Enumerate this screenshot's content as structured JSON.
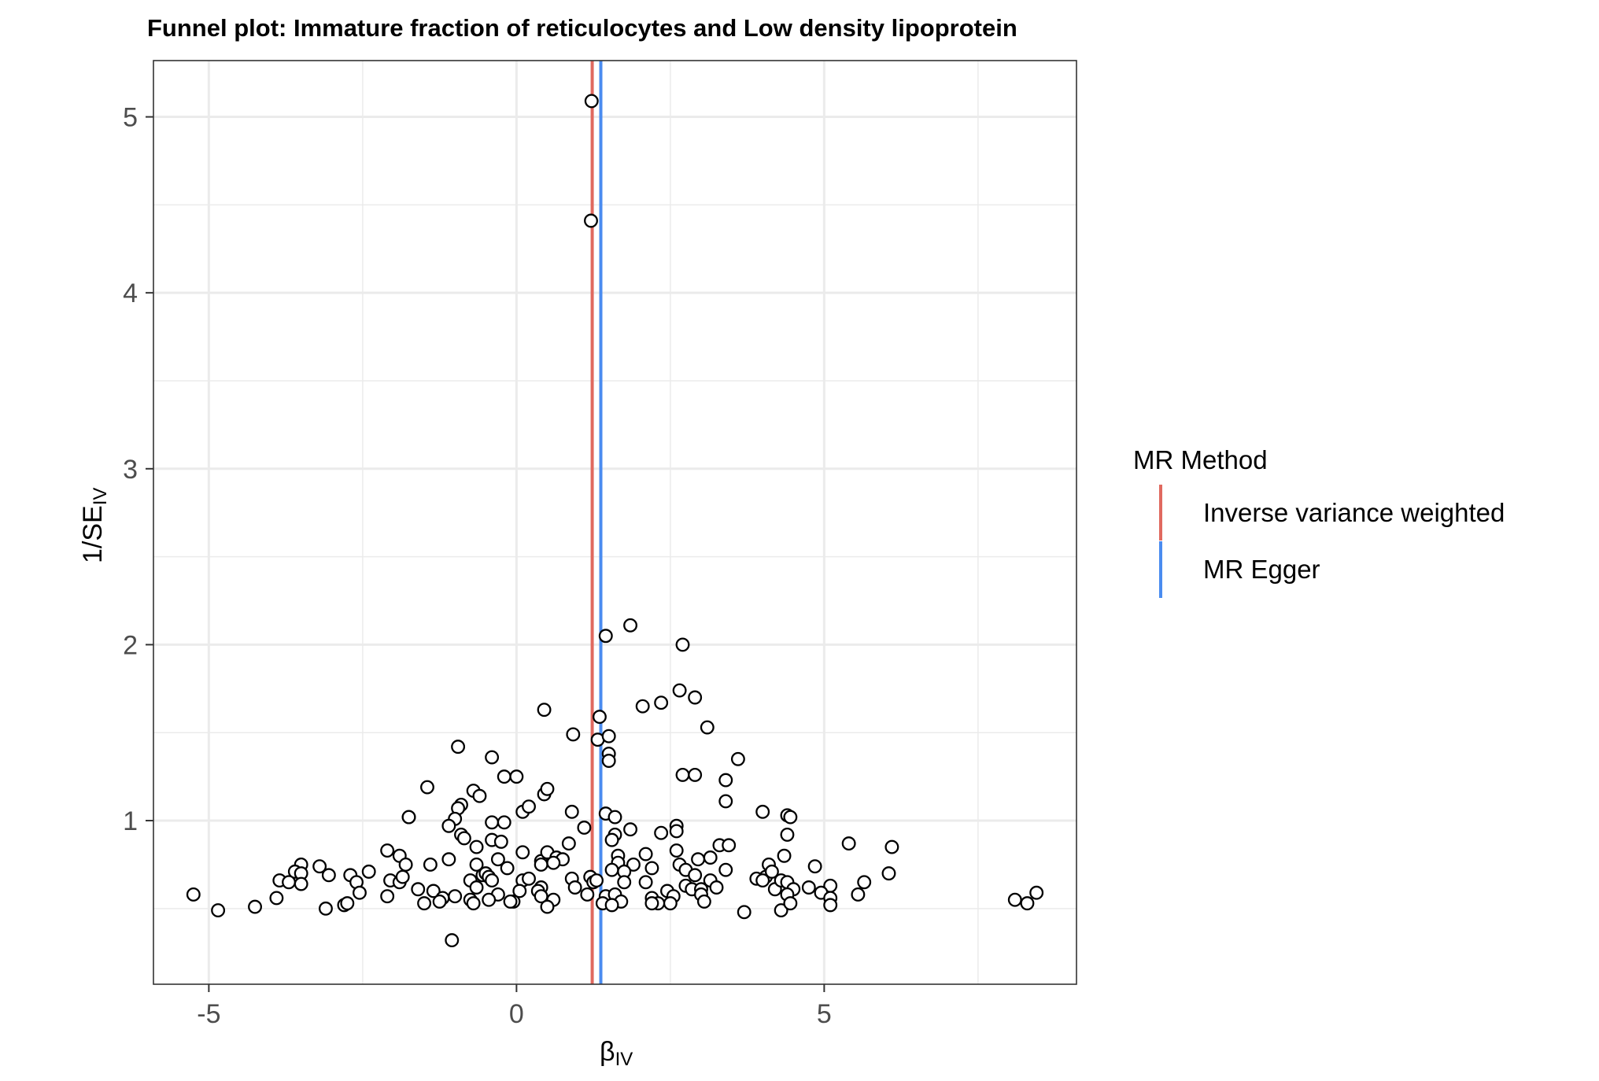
{
  "chart_data": {
    "type": "scatter",
    "title": "Funnel plot: Immature fraction of reticulocytes and Low density lipoprotein",
    "xlabel": {
      "main": "β",
      "sub": "IV"
    },
    "ylabel": {
      "main": "1/SE",
      "sub": "IV"
    },
    "xlim": [
      -5.9,
      9.1
    ],
    "ylim": [
      0.07,
      5.32
    ],
    "x_ticks": [
      -5,
      0,
      5
    ],
    "x_tick_labels": [
      "-5",
      "0",
      "5"
    ],
    "y_ticks": [
      1,
      2,
      3,
      4,
      5
    ],
    "y_tick_labels": [
      "1",
      "2",
      "3",
      "4",
      "5"
    ],
    "grid": true,
    "legend": {
      "title": "MR Method",
      "position": "right",
      "entries": [
        {
          "name": "Inverse variance weighted",
          "color": "#e0695f"
        },
        {
          "name": "MR Egger",
          "color": "#4a8cf0"
        }
      ]
    },
    "vlines": [
      {
        "name": "Inverse variance weighted",
        "x": 1.23,
        "color": "#e0695f"
      },
      {
        "name": "MR Egger",
        "x": 1.37,
        "color": "#4a8cf0"
      }
    ],
    "points": [
      [
        1.22,
        5.09
      ],
      [
        1.21,
        4.41
      ],
      [
        1.45,
        2.05
      ],
      [
        1.85,
        2.11
      ],
      [
        2.7,
        2.0
      ],
      [
        0.45,
        1.63
      ],
      [
        1.35,
        1.59
      ],
      [
        2.05,
        1.65
      ],
      [
        2.35,
        1.67
      ],
      [
        2.65,
        1.74
      ],
      [
        2.9,
        1.7
      ],
      [
        0.92,
        1.49
      ],
      [
        1.32,
        1.46
      ],
      [
        1.5,
        1.48
      ],
      [
        3.1,
        1.53
      ],
      [
        -0.95,
        1.42
      ],
      [
        -0.4,
        1.36
      ],
      [
        1.5,
        1.38
      ],
      [
        1.5,
        1.34
      ],
      [
        3.6,
        1.35
      ],
      [
        -0.2,
        1.25
      ],
      [
        0.0,
        1.25
      ],
      [
        2.7,
        1.26
      ],
      [
        2.9,
        1.26
      ],
      [
        3.4,
        1.23
      ],
      [
        -1.45,
        1.19
      ],
      [
        -0.7,
        1.17
      ],
      [
        -0.6,
        1.14
      ],
      [
        0.45,
        1.15
      ],
      [
        0.5,
        1.18
      ],
      [
        3.4,
        1.11
      ],
      [
        -0.9,
        1.09
      ],
      [
        -0.95,
        1.07
      ],
      [
        0.1,
        1.05
      ],
      [
        0.2,
        1.08
      ],
      [
        -1.75,
        1.02
      ],
      [
        -1.75,
        1.02
      ],
      [
        -1.0,
        1.01
      ],
      [
        -1.1,
        0.97
      ],
      [
        -0.4,
        0.99
      ],
      [
        -0.2,
        0.99
      ],
      [
        0.9,
        1.05
      ],
      [
        1.1,
        0.96
      ],
      [
        1.45,
        1.04
      ],
      [
        1.6,
        1.02
      ],
      [
        2.6,
        0.97
      ],
      [
        2.6,
        0.94
      ],
      [
        4.0,
        1.05
      ],
      [
        4.4,
        1.03
      ],
      [
        4.45,
        1.02
      ],
      [
        -0.9,
        0.92
      ],
      [
        -0.85,
        0.9
      ],
      [
        -0.4,
        0.89
      ],
      [
        -0.25,
        0.88
      ],
      [
        -0.65,
        0.85
      ],
      [
        1.6,
        0.92
      ],
      [
        1.55,
        0.89
      ],
      [
        1.85,
        0.95
      ],
      [
        2.35,
        0.93
      ],
      [
        4.4,
        0.92
      ],
      [
        -2.1,
        0.83
      ],
      [
        -1.9,
        0.8
      ],
      [
        -0.3,
        0.78
      ],
      [
        0.1,
        0.82
      ],
      [
        0.4,
        0.77
      ],
      [
        0.5,
        0.82
      ],
      [
        0.65,
        0.79
      ],
      [
        0.75,
        0.78
      ],
      [
        0.85,
        0.87
      ],
      [
        1.65,
        0.8
      ],
      [
        2.1,
        0.81
      ],
      [
        2.6,
        0.83
      ],
      [
        3.3,
        0.86
      ],
      [
        3.45,
        0.86
      ],
      [
        3.15,
        0.79
      ],
      [
        4.35,
        0.8
      ],
      [
        5.4,
        0.87
      ],
      [
        6.1,
        0.85
      ],
      [
        -3.5,
        0.75
      ],
      [
        -3.6,
        0.71
      ],
      [
        -3.5,
        0.7
      ],
      [
        -3.2,
        0.74
      ],
      [
        -3.05,
        0.69
      ],
      [
        -2.7,
        0.69
      ],
      [
        -2.4,
        0.71
      ],
      [
        -1.8,
        0.75
      ],
      [
        -1.4,
        0.75
      ],
      [
        -1.1,
        0.78
      ],
      [
        -0.65,
        0.75
      ],
      [
        -0.55,
        0.69
      ],
      [
        -0.5,
        0.7
      ],
      [
        -0.15,
        0.73
      ],
      [
        0.4,
        0.75
      ],
      [
        0.6,
        0.76
      ],
      [
        1.65,
        0.76
      ],
      [
        1.9,
        0.75
      ],
      [
        2.2,
        0.73
      ],
      [
        2.65,
        0.75
      ],
      [
        2.75,
        0.72
      ],
      [
        2.95,
        0.78
      ],
      [
        3.4,
        0.72
      ],
      [
        3.9,
        0.67
      ],
      [
        4.05,
        0.68
      ],
      [
        4.1,
        0.75
      ],
      [
        4.15,
        0.71
      ],
      [
        4.85,
        0.74
      ],
      [
        -3.85,
        0.66
      ],
      [
        -3.7,
        0.65
      ],
      [
        -3.5,
        0.64
      ],
      [
        -2.6,
        0.65
      ],
      [
        -2.05,
        0.66
      ],
      [
        -1.9,
        0.65
      ],
      [
        -1.85,
        0.68
      ],
      [
        -0.75,
        0.66
      ],
      [
        -0.65,
        0.62
      ],
      [
        -0.45,
        0.68
      ],
      [
        -0.4,
        0.66
      ],
      [
        0.1,
        0.66
      ],
      [
        0.2,
        0.67
      ],
      [
        0.4,
        0.62
      ],
      [
        0.9,
        0.67
      ],
      [
        0.95,
        0.62
      ],
      [
        1.2,
        0.68
      ],
      [
        1.25,
        0.65
      ],
      [
        1.3,
        0.66
      ],
      [
        1.55,
        0.72
      ],
      [
        1.75,
        0.71
      ],
      [
        1.75,
        0.65
      ],
      [
        2.1,
        0.65
      ],
      [
        2.75,
        0.63
      ],
      [
        2.85,
        0.61
      ],
      [
        2.9,
        0.69
      ],
      [
        3.0,
        0.61
      ],
      [
        3.15,
        0.66
      ],
      [
        3.25,
        0.62
      ],
      [
        4.0,
        0.66
      ],
      [
        4.2,
        0.61
      ],
      [
        4.3,
        0.66
      ],
      [
        4.4,
        0.65
      ],
      [
        4.5,
        0.61
      ],
      [
        4.75,
        0.62
      ],
      [
        5.1,
        0.63
      ],
      [
        5.65,
        0.65
      ],
      [
        6.05,
        0.7
      ],
      [
        -5.25,
        0.58
      ],
      [
        -3.9,
        0.56
      ],
      [
        -2.55,
        0.59
      ],
      [
        -2.1,
        0.57
      ],
      [
        -1.6,
        0.61
      ],
      [
        -1.35,
        0.6
      ],
      [
        -1.2,
        0.56
      ],
      [
        -1.0,
        0.57
      ],
      [
        -0.75,
        0.55
      ],
      [
        -0.3,
        0.58
      ],
      [
        -0.05,
        0.54
      ],
      [
        0.05,
        0.6
      ],
      [
        0.35,
        0.6
      ],
      [
        0.4,
        0.57
      ],
      [
        0.6,
        0.55
      ],
      [
        1.15,
        0.58
      ],
      [
        1.45,
        0.57
      ],
      [
        1.6,
        0.58
      ],
      [
        1.7,
        0.54
      ],
      [
        2.2,
        0.56
      ],
      [
        2.3,
        0.53
      ],
      [
        2.45,
        0.6
      ],
      [
        2.55,
        0.57
      ],
      [
        3.0,
        0.58
      ],
      [
        3.05,
        0.54
      ],
      [
        4.4,
        0.58
      ],
      [
        4.95,
        0.59
      ],
      [
        5.1,
        0.56
      ],
      [
        5.55,
        0.58
      ],
      [
        8.1,
        0.55
      ],
      [
        8.45,
        0.59
      ],
      [
        -4.85,
        0.49
      ],
      [
        -4.25,
        0.51
      ],
      [
        -3.1,
        0.5
      ],
      [
        -2.8,
        0.52
      ],
      [
        -2.75,
        0.53
      ],
      [
        -1.5,
        0.53
      ],
      [
        -1.25,
        0.54
      ],
      [
        -0.7,
        0.53
      ],
      [
        -0.45,
        0.55
      ],
      [
        -0.1,
        0.54
      ],
      [
        0.5,
        0.51
      ],
      [
        1.4,
        0.53
      ],
      [
        1.55,
        0.52
      ],
      [
        2.2,
        0.53
      ],
      [
        2.5,
        0.53
      ],
      [
        3.7,
        0.48
      ],
      [
        4.3,
        0.49
      ],
      [
        4.45,
        0.53
      ],
      [
        5.1,
        0.52
      ],
      [
        8.3,
        0.53
      ],
      [
        -1.05,
        0.32
      ]
    ]
  }
}
